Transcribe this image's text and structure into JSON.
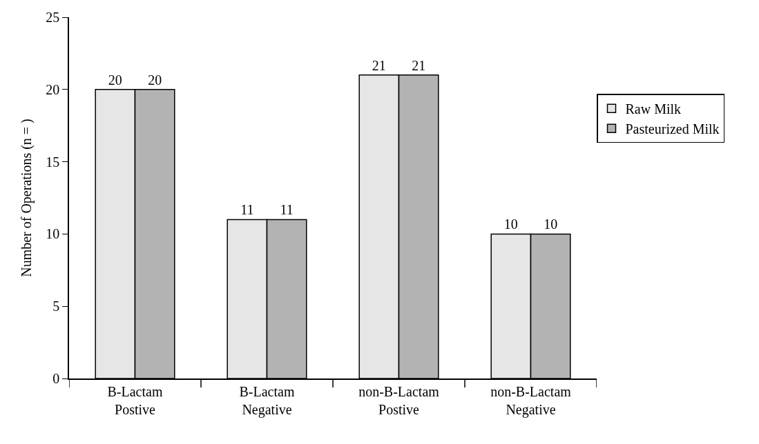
{
  "chart_data": {
    "type": "bar",
    "ylabel": "Number of Operations (n = )",
    "categories": [
      "B-Lactam Postive",
      "B-Lactam Negative",
      "non-B-Lactam Postive",
      "non-B-Lactam Negative"
    ],
    "series": [
      {
        "name": "Raw Milk",
        "color": "#e6e6e6",
        "values": [
          20,
          11,
          21,
          10
        ]
      },
      {
        "name": "Pasteurized Milk",
        "color": "#b3b3b3",
        "values": [
          20,
          11,
          21,
          10
        ]
      }
    ],
    "ylim": [
      0,
      25
    ],
    "yticks": [
      0,
      5,
      10,
      15,
      20,
      25
    ],
    "grid": false,
    "legend": "right",
    "data_labels": true
  }
}
